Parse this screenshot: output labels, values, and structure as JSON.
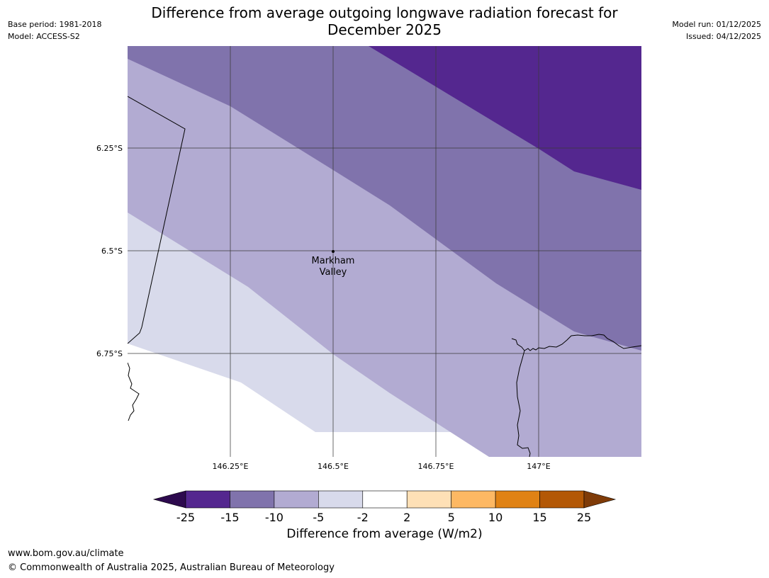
{
  "header": {
    "title_line1": "Difference from average outgoing longwave radiation forecast for",
    "title_line2": "December 2025",
    "base_period": "Base period: 1981-2018",
    "model": "Model: ACCESS-S2",
    "model_run": "Model run: 01/12/2025",
    "issued": "Issued: 04/12/2025"
  },
  "map": {
    "lat_labels": [
      "6.25°S",
      "6.5°S",
      "6.75°S"
    ],
    "lon_labels": [
      "146.25°E",
      "146.5°E",
      "146.75°E",
      "147°E"
    ],
    "place": {
      "name_line1": "Markham",
      "name_line2": "Valley"
    }
  },
  "colorbar": {
    "ticks": [
      "-25",
      "-15",
      "-10",
      "-5",
      "-2",
      "2",
      "5",
      "10",
      "15",
      "25"
    ],
    "colors": [
      "#2d0a4e",
      "#54278f",
      "#8073ac",
      "#b2abd2",
      "#d8daeb",
      "#ffffff",
      "#fee0b6",
      "#fdb863",
      "#e08214",
      "#b35806",
      "#7f3b08"
    ],
    "title": "Difference from average (W/m2)"
  },
  "footer": {
    "url": "www.bom.gov.au/climate",
    "copyright": "© Commonwealth of Australia 2025, Australian Bureau of Meteorology"
  }
}
